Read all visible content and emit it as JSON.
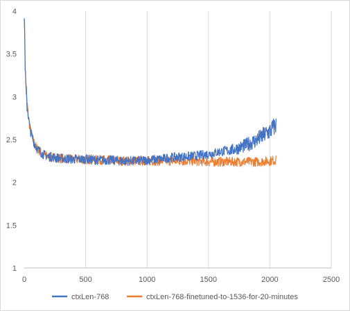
{
  "chart_data": {
    "type": "line",
    "title": "",
    "xlabel": "",
    "ylabel": "",
    "xlim": [
      0,
      2500
    ],
    "ylim": [
      1,
      4
    ],
    "x_ticks": [
      0,
      500,
      1000,
      1500,
      2000,
      2500
    ],
    "y_ticks": [
      1,
      1.5,
      2,
      2.5,
      3,
      3.5,
      4
    ],
    "x_tick_labels": [
      "0",
      "500",
      "1000",
      "1500",
      "2000",
      "2500"
    ],
    "y_tick_labels": [
      "1",
      "1.5",
      "2",
      "2.5",
      "3",
      "3.5",
      "4"
    ],
    "grid": "vertical",
    "legend_position": "bottom",
    "series": [
      {
        "name": "ctxLen-768",
        "color": "#4472c4",
        "x": [
          0,
          10,
          20,
          35,
          50,
          75,
          100,
          150,
          200,
          300,
          400,
          500,
          600,
          700,
          800,
          900,
          1000,
          1100,
          1200,
          1300,
          1400,
          1500,
          1600,
          1700,
          1800,
          1900,
          2000,
          2050
        ],
        "y": [
          4.0,
          3.2,
          2.95,
          2.75,
          2.6,
          2.48,
          2.4,
          2.33,
          2.3,
          2.28,
          2.27,
          2.27,
          2.26,
          2.26,
          2.25,
          2.25,
          2.26,
          2.27,
          2.29,
          2.3,
          2.31,
          2.33,
          2.36,
          2.38,
          2.43,
          2.5,
          2.6,
          2.67
        ]
      },
      {
        "name": "ctxLen-768-finetuned-to-1536-for-20-minutes",
        "color": "#ed7d31",
        "x": [
          0,
          10,
          20,
          35,
          50,
          75,
          100,
          150,
          200,
          300,
          400,
          500,
          600,
          700,
          800,
          900,
          1000,
          1100,
          1200,
          1300,
          1400,
          1500,
          1600,
          1700,
          1800,
          1900,
          2000,
          2050
        ],
        "y": [
          4.0,
          3.2,
          2.95,
          2.75,
          2.6,
          2.48,
          2.4,
          2.33,
          2.3,
          2.28,
          2.27,
          2.27,
          2.26,
          2.26,
          2.25,
          2.25,
          2.25,
          2.25,
          2.25,
          2.25,
          2.25,
          2.24,
          2.24,
          2.24,
          2.24,
          2.24,
          2.25,
          2.26
        ]
      }
    ]
  }
}
